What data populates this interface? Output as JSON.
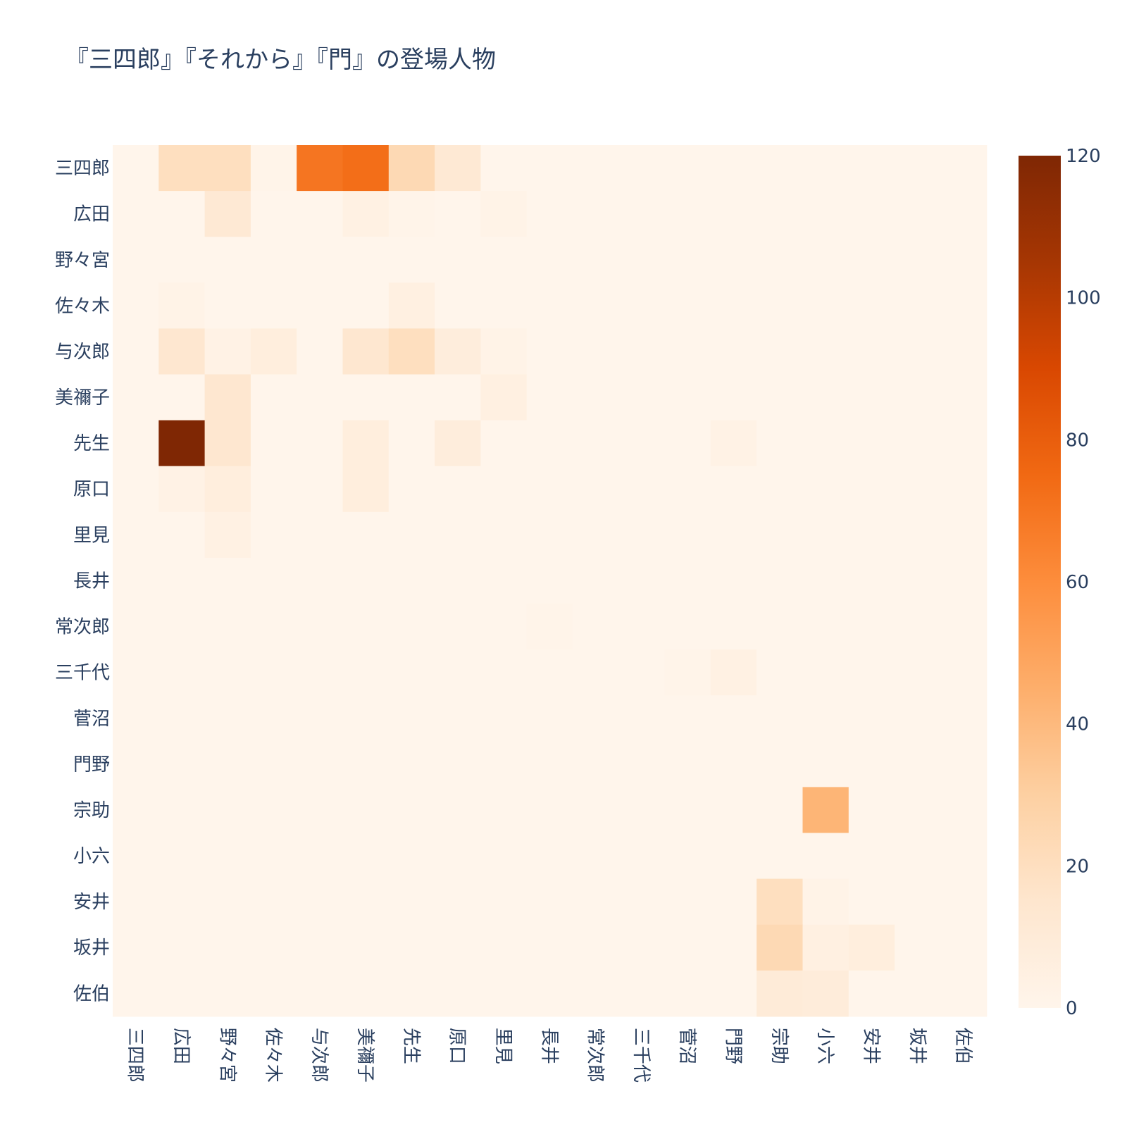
{
  "chart_data": {
    "type": "heatmap",
    "title": "『三四郎』『それから』『門』の登場人物",
    "xlabel": "",
    "ylabel": "",
    "x": [
      "三四郎",
      "広田",
      "野々宮",
      "佐々木",
      "与次郎",
      "美禰子",
      "先生",
      "原口",
      "里見",
      "長井",
      "常次郎",
      "三千代",
      "菅沼",
      "門野",
      "宗助",
      "小六",
      "安井",
      "坂井",
      "佐伯"
    ],
    "y": [
      "三四郎",
      "広田",
      "野々宮",
      "佐々木",
      "与次郎",
      "美禰子",
      "先生",
      "原口",
      "里見",
      "長井",
      "常次郎",
      "三千代",
      "菅沼",
      "門野",
      "宗助",
      "小六",
      "安井",
      "坂井",
      "佐伯"
    ],
    "z": [
      [
        0,
        20,
        20,
        1,
        70,
        73,
        24,
        12,
        0,
        0,
        0,
        0,
        0,
        0,
        0,
        0,
        0,
        0,
        0
      ],
      [
        0,
        0,
        12,
        0,
        0,
        4,
        1,
        0,
        2,
        0,
        0,
        0,
        0,
        0,
        0,
        0,
        0,
        0,
        0
      ],
      [
        0,
        0,
        0,
        0,
        0,
        0,
        0,
        0,
        0,
        0,
        0,
        0,
        0,
        0,
        0,
        0,
        0,
        0,
        0
      ],
      [
        0,
        2,
        0,
        0,
        0,
        0,
        5,
        0,
        0,
        0,
        0,
        0,
        0,
        0,
        0,
        0,
        0,
        0,
        0
      ],
      [
        0,
        14,
        3,
        7,
        0,
        14,
        20,
        8,
        2,
        0,
        0,
        0,
        0,
        0,
        0,
        0,
        0,
        0,
        0
      ],
      [
        0,
        0,
        14,
        0,
        0,
        0,
        0,
        0,
        5,
        0,
        0,
        0,
        0,
        0,
        0,
        0,
        0,
        0,
        0
      ],
      [
        0,
        120,
        14,
        0,
        0,
        7,
        0,
        8,
        0,
        0,
        0,
        0,
        0,
        3,
        0,
        0,
        0,
        0,
        0
      ],
      [
        0,
        3,
        7,
        0,
        0,
        7,
        0,
        0,
        0,
        0,
        0,
        0,
        0,
        0,
        0,
        0,
        0,
        0,
        0
      ],
      [
        0,
        0,
        4,
        0,
        0,
        0,
        0,
        0,
        0,
        0,
        0,
        0,
        0,
        0,
        0,
        0,
        0,
        0,
        0
      ],
      [
        0,
        0,
        0,
        0,
        0,
        0,
        0,
        0,
        0,
        0,
        0,
        0,
        0,
        0,
        0,
        0,
        0,
        0,
        0
      ],
      [
        0,
        0,
        0,
        0,
        0,
        0,
        0,
        0,
        0,
        1,
        0,
        0,
        0,
        0,
        0,
        0,
        0,
        0,
        0
      ],
      [
        0,
        0,
        0,
        0,
        0,
        0,
        0,
        0,
        0,
        0,
        0,
        0,
        1,
        4,
        0,
        0,
        0,
        0,
        0
      ],
      [
        0,
        0,
        0,
        0,
        0,
        0,
        0,
        0,
        0,
        0,
        0,
        0,
        0,
        0,
        0,
        0,
        0,
        0,
        0
      ],
      [
        0,
        0,
        0,
        0,
        0,
        0,
        0,
        0,
        0,
        0,
        0,
        0,
        0,
        0,
        0,
        0,
        0,
        0,
        0
      ],
      [
        0,
        0,
        0,
        0,
        0,
        0,
        0,
        0,
        0,
        0,
        0,
        0,
        0,
        0,
        0,
        42,
        0,
        0,
        0
      ],
      [
        0,
        0,
        0,
        0,
        0,
        0,
        0,
        0,
        0,
        0,
        0,
        0,
        0,
        0,
        0,
        0,
        0,
        0,
        0
      ],
      [
        0,
        0,
        0,
        0,
        0,
        0,
        0,
        0,
        0,
        0,
        0,
        0,
        0,
        0,
        20,
        2,
        0,
        0,
        0
      ],
      [
        0,
        0,
        0,
        0,
        0,
        0,
        0,
        0,
        0,
        0,
        0,
        0,
        0,
        0,
        24,
        5,
        7,
        0,
        0
      ],
      [
        0,
        0,
        0,
        0,
        0,
        0,
        0,
        0,
        0,
        0,
        0,
        0,
        0,
        0,
        10,
        9,
        0,
        0,
        0
      ]
    ],
    "zlim": [
      0,
      120
    ],
    "colorscale": [
      [
        0.0,
        "#fff5eb"
      ],
      [
        0.125,
        "#fee6ce"
      ],
      [
        0.25,
        "#fdd0a2"
      ],
      [
        0.375,
        "#fdae6b"
      ],
      [
        0.5,
        "#fd8d3c"
      ],
      [
        0.625,
        "#f16913"
      ],
      [
        0.75,
        "#d94801"
      ],
      [
        0.875,
        "#a63603"
      ],
      [
        1.0,
        "#7f2704"
      ]
    ],
    "colorbar_ticks": [
      "0",
      "20",
      "40",
      "60",
      "80",
      "100",
      "120"
    ],
    "grid": false,
    "legend": "colorbar-right"
  }
}
